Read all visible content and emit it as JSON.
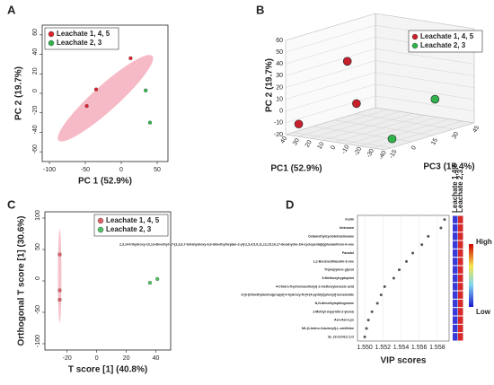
{
  "chart_data": [
    {
      "type": "scatter",
      "panel_label": "A",
      "xlabel": "PC 1 (52.9%)",
      "ylabel": "PC 2 (19.7%)",
      "xlim": [
        -110,
        65
      ],
      "ylim": [
        -70,
        70
      ],
      "xticks": [
        -100,
        -50,
        0,
        50
      ],
      "yticks": [
        -60,
        -40,
        -20,
        0,
        20,
        40,
        60
      ],
      "legend": "top-left",
      "series": [
        {
          "name": "Leachate 1, 4, 5",
          "color": "#d9232e",
          "x": [
            -48,
            -35,
            13
          ],
          "y": [
            -13,
            4,
            36
          ]
        },
        {
          "name": "Leachate  2, 3",
          "color": "#2fb34a",
          "x": [
            34,
            40
          ],
          "y": [
            3,
            -30
          ]
        }
      ]
    },
    {
      "type": "scatter3d",
      "panel_label": "B",
      "xlabel": "PC1 (52.9%)",
      "ylabel": "PC 2 (19.7%)",
      "zlabel": "PC3 (15.4%)",
      "xlim": [
        -40,
        40
      ],
      "ylim": [
        -20,
        60
      ],
      "zlim": [
        -20,
        45
      ],
      "xticks": [
        -40,
        -30,
        -20,
        -10,
        0,
        10,
        20,
        30,
        40
      ],
      "yticks": [
        -20,
        -10,
        0,
        10,
        20,
        30,
        40,
        50,
        60
      ],
      "zticks": [
        -15,
        0,
        15,
        30,
        45
      ],
      "legend": "top-right",
      "series": [
        {
          "name": "Leachate 1, 4, 5",
          "color": "#c8202c",
          "x": [
            18,
            5,
            35
          ],
          "y": [
            37,
            5,
            -12
          ],
          "z": [
            5,
            0,
            -15
          ]
        },
        {
          "name": "Leachate  2, 3",
          "color": "#2fb34a",
          "x": [
            -25,
            -35
          ],
          "y": [
            3,
            -15
          ],
          "z": [
            30,
            -10
          ]
        }
      ]
    },
    {
      "type": "scatter",
      "panel_label": "C",
      "xlabel": "T score [1] (40.8%)",
      "ylabel": "Orthogonal T score [1] (30.6%)",
      "xlim": [
        -35,
        50
      ],
      "ylim": [
        -110,
        110
      ],
      "xticks": [
        -20,
        0,
        20,
        40
      ],
      "yticks": [
        -100,
        -50,
        0,
        50,
        100
      ],
      "legend": "top-right",
      "series": [
        {
          "name": "Leachate 1, 4, 5",
          "color": "#e0606a",
          "x": [
            -25,
            -25,
            -25
          ],
          "y": [
            42,
            -15,
            -30
          ]
        },
        {
          "name": "Leachate  2, 3",
          "color": "#4fc063",
          "x": [
            36,
            41
          ],
          "y": [
            -3,
            3
          ]
        }
      ]
    },
    {
      "type": "vip",
      "panel_label": "D",
      "xlabel": "VIP scores",
      "categories": [
        "Inulin",
        "Unknown",
        "Octamethylcyclotetrasiloxane",
        "2,3,14-trihydroxy-10,13-dimethyl-17-[2,3,6,7-tetrahydroxy-6,6-dimethylheptan-2-yl]-2,3,4,5,9,11,12,15,16,17-decahydro-1H-cyclopenta[a]phenanthren-6-one",
        "Paradol",
        "1,2-Benzisothiazolin-3-one",
        "Tripropylene glycol",
        "5-Methoxytryptophol",
        "4-Chloro-5-(chlorosulfonyl)-2-methoxybenzoic acid",
        "3-[3-(Dimethylamino)propyl]-4-hydroxy-N-[4-(4-pyridyl)phenyl]-benzamide",
        "N,N-dimethylsphingosine",
        "1-Methyl-3-pyridin-2-ylurea",
        "Asn-Asn-Lys",
        "N6-(1-Imino-3-butenyl)-L-ornithine",
        "SL 23:3;O/12:1;O"
      ],
      "values": [
        1.5588,
        1.5584,
        1.557,
        1.5563,
        1.5553,
        1.5546,
        1.5538,
        1.5532,
        1.5522,
        1.5518,
        1.5514,
        1.5508,
        1.5504,
        1.5502,
        1.55
      ],
      "xlim": [
        1.5492,
        1.5593
      ],
      "xticks": [
        {
          "value": 1.55,
          "label": "1.550"
        },
        {
          "value": 1.552,
          "label": "1.552"
        },
        {
          "value": 1.554,
          "label": "1.554"
        },
        {
          "value": 1.556,
          "label": "1.556"
        },
        {
          "value": 1.558,
          "label": "1.558"
        }
      ],
      "heatmap_columns": [
        "Leachate 1,4,5",
        "Leachate 2,3"
      ],
      "heatmap_colors": [
        "#3a3ad6",
        "#d62a2a"
      ],
      "colorbar_labels": [
        "High",
        "Low"
      ]
    }
  ]
}
